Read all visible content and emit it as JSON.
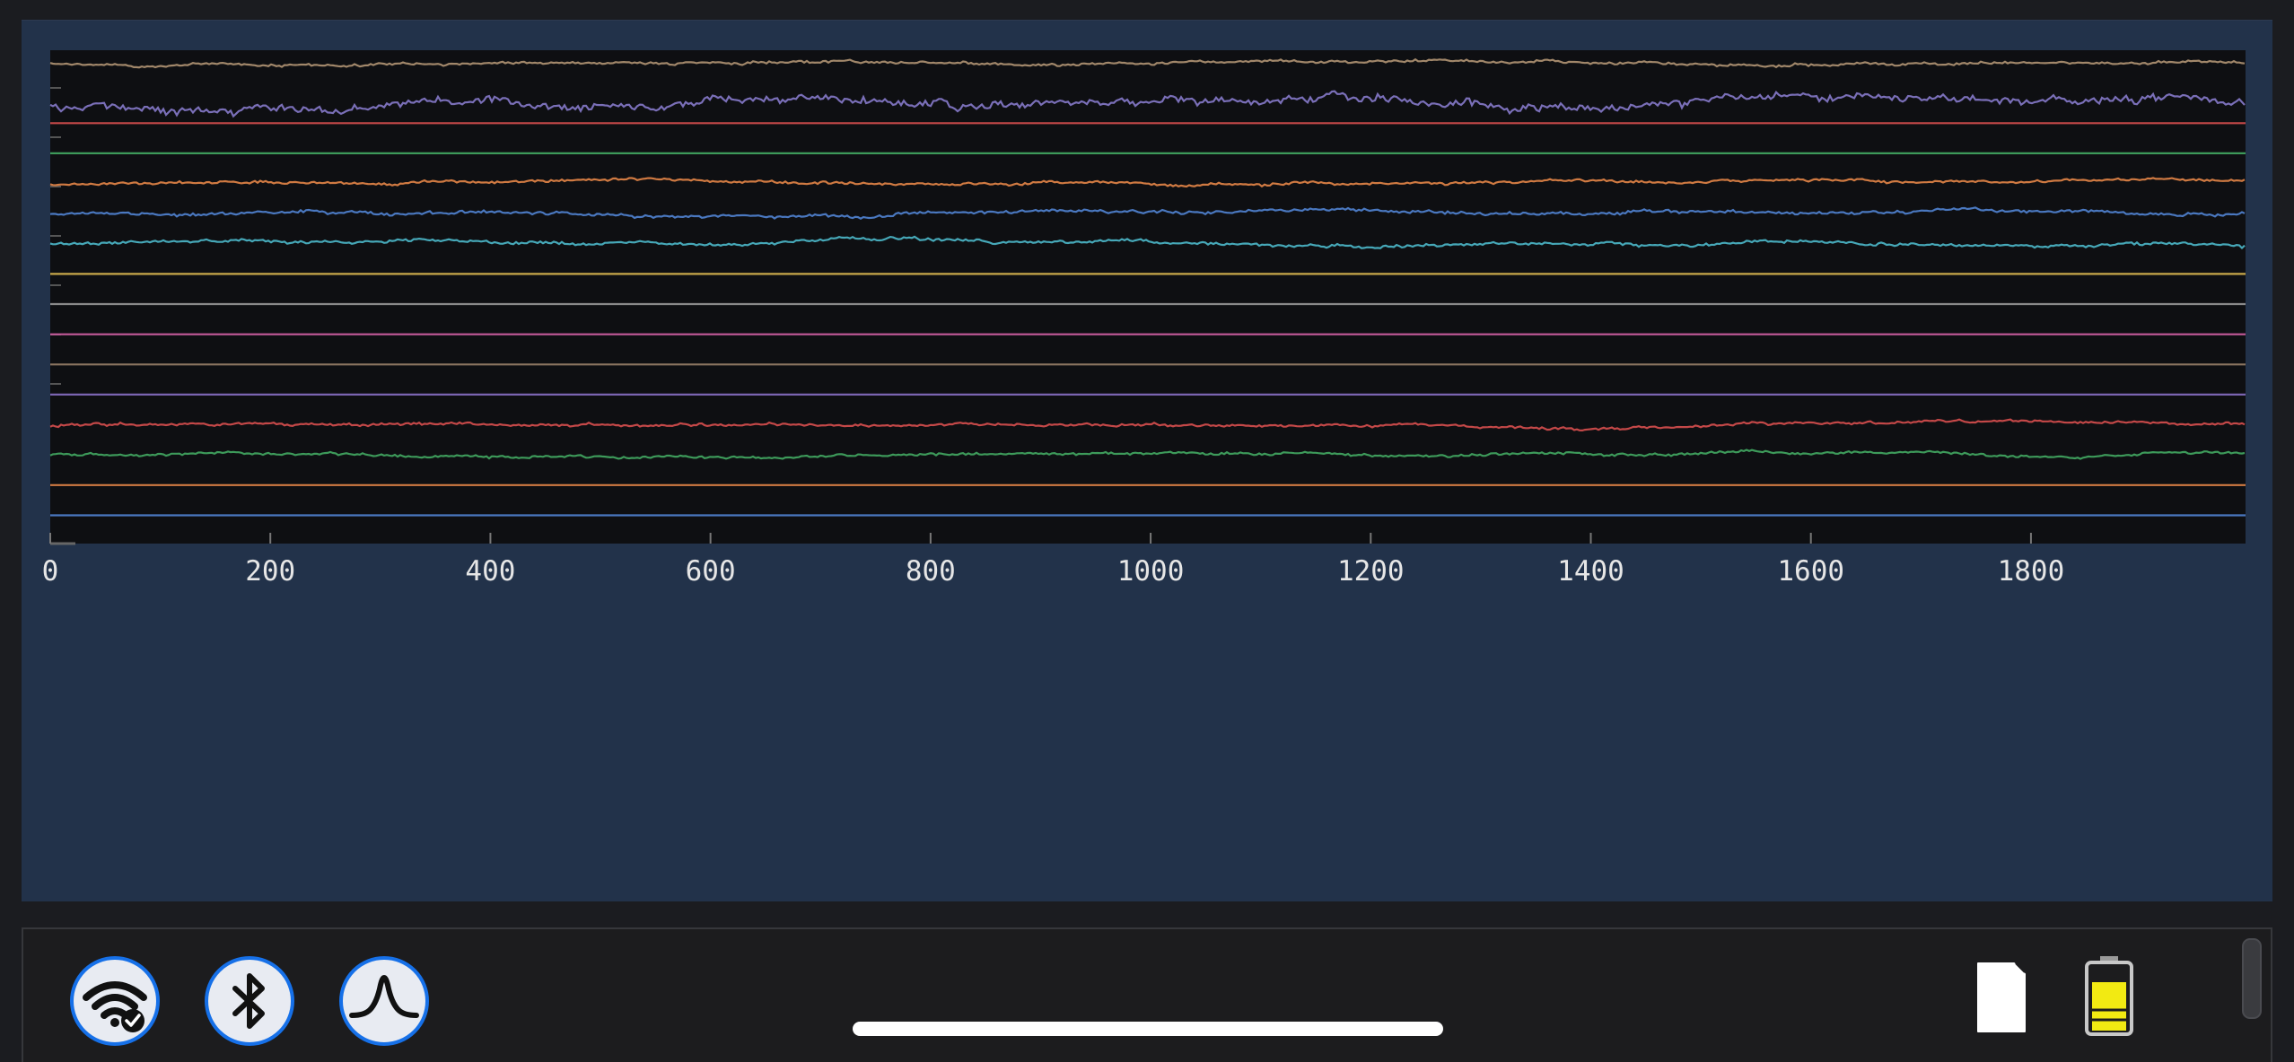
{
  "chart_data": {
    "type": "line",
    "title": "",
    "xlabel": "",
    "ylabel": "",
    "xlim": [
      0,
      1995
    ],
    "x_ticks": [
      "0",
      "200",
      "400",
      "600",
      "800",
      "1000",
      "1200",
      "1400",
      "1600",
      "1800"
    ],
    "grid": false,
    "legend": "none",
    "series": [
      {
        "color": "#a1876a",
        "style": "noisy",
        "amplitude": 1.0
      },
      {
        "color": "#7a6fb8",
        "style": "noisy",
        "amplitude": 3.0
      },
      {
        "color": "#c44848",
        "style": "flat"
      },
      {
        "color": "#3d9a5a",
        "style": "flat"
      },
      {
        "color": "#d07a42",
        "style": "noisy",
        "amplitude": 1.0
      },
      {
        "color": "#4a78c0",
        "style": "noisy",
        "amplitude": 1.2
      },
      {
        "color": "#46a8b8",
        "style": "noisy",
        "amplitude": 1.2
      },
      {
        "color": "#c8a84a",
        "style": "flat"
      },
      {
        "color": "#8a8a8a",
        "style": "flat"
      },
      {
        "color": "#c45a9a",
        "style": "flat"
      },
      {
        "color": "#8a7460",
        "style": "flat"
      },
      {
        "color": "#7a64b0",
        "style": "flat"
      },
      {
        "color": "#c44848",
        "style": "noisy",
        "amplitude": 1.0
      },
      {
        "color": "#3d9a5a",
        "style": "noisy",
        "amplitude": 1.0
      },
      {
        "color": "#d07a42",
        "style": "flat"
      },
      {
        "color": "#4a78c0",
        "style": "flat"
      }
    ]
  },
  "colors": {
    "frame_bg": "#22324a",
    "plot_bg": "#0e0f12",
    "tick_text": "#e6e6e6",
    "accent": "#1670e8",
    "battery_fill": "#f2ea12"
  },
  "status_bar": {
    "buttons": [
      {
        "icon": "wifi-check-icon"
      },
      {
        "icon": "bluetooth-icon"
      },
      {
        "icon": "signal-pulse-icon"
      }
    ],
    "sd_card_icon": "sd-card-icon",
    "battery_icon": "battery-icon",
    "battery_level": 0.75
  }
}
